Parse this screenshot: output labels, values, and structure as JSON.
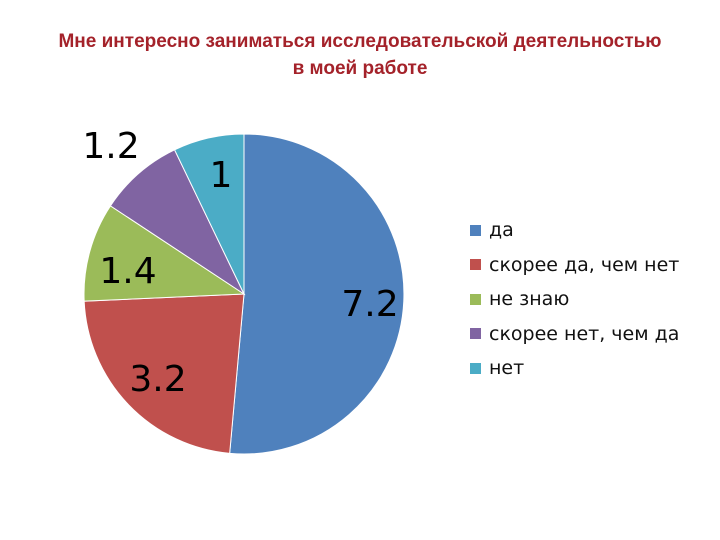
{
  "chart_data": {
    "type": "pie",
    "title": "Мне интересно заниматься исследовательской деятельностью в моей работе",
    "title_lines": [
      "Мне интересно заниматься исследовательской деятельностью",
      "в моей работе"
    ],
    "slices": [
      {
        "label": "да",
        "value": 7.2,
        "color": "#4F81BD"
      },
      {
        "label": "скорее да, чем нет",
        "value": 3.2,
        "color": "#C0504D"
      },
      {
        "label": "не знаю",
        "value": 1.4,
        "color": "#9BBB59"
      },
      {
        "label": "скорее нет, чем да",
        "value": 1.2,
        "color": "#8064A2"
      },
      {
        "label": "нет",
        "value": 1,
        "color": "#4BACC6"
      }
    ],
    "legend_position": "right",
    "data_labels": true,
    "start_angle": "12 o'clock",
    "direction": "clockwise"
  }
}
